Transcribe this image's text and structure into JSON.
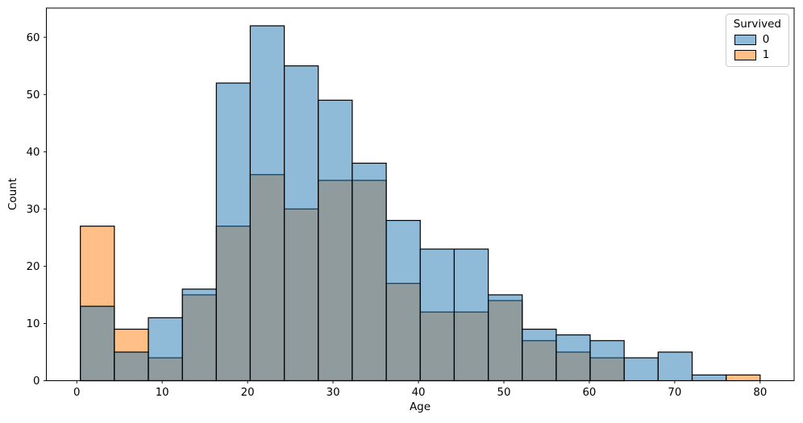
{
  "figure": {
    "background": "#ffffff",
    "legend": {
      "title": "Survived",
      "entries": [
        {
          "label": "0",
          "color": "#1f77b4"
        },
        {
          "label": "1",
          "color": "#ff7f0e"
        }
      ]
    }
  },
  "chart_data": {
    "type": "bar",
    "subtype": "overlapping-histogram",
    "title": "",
    "xlabel": "Age",
    "ylabel": "Count",
    "legend_title": "Survived",
    "legend_position": "upper right",
    "grid": false,
    "alpha": 0.5,
    "edge_color": "#000000",
    "bin_edges": [
      0.42,
      4.4,
      8.38,
      12.36,
      16.34,
      20.31,
      24.29,
      28.27,
      32.25,
      36.23,
      40.21,
      44.19,
      48.17,
      52.15,
      56.13,
      60.1,
      64.08,
      68.06,
      72.04,
      76.02,
      80.0
    ],
    "series": [
      {
        "name": "0",
        "color": "#1f77b4",
        "values": [
          13,
          5,
          11,
          16,
          52,
          62,
          55,
          49,
          38,
          28,
          23,
          23,
          15,
          9,
          8,
          7,
          4,
          5,
          1,
          0
        ]
      },
      {
        "name": "1",
        "color": "#ff7f0e",
        "values": [
          27,
          9,
          4,
          15,
          27,
          36,
          30,
          35,
          35,
          17,
          12,
          12,
          14,
          7,
          5,
          4,
          0,
          0,
          0,
          1
        ]
      }
    ],
    "draw_order": [
      "1",
      "0"
    ],
    "xticks": [
      0,
      10,
      20,
      30,
      40,
      50,
      60,
      70,
      80
    ],
    "yticks": [
      0,
      10,
      20,
      30,
      40,
      50,
      60
    ],
    "xlim": [
      -3.56,
      83.98
    ],
    "ylim": [
      0,
      65.1
    ]
  }
}
